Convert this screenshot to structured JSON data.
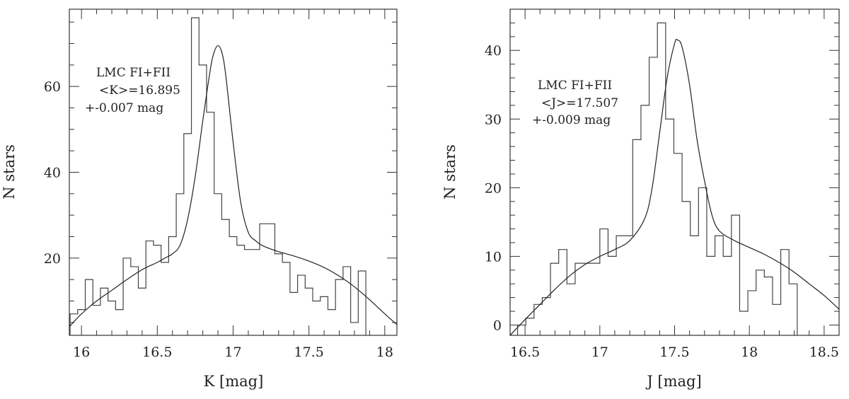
{
  "chart_data": [
    {
      "type": "line",
      "xlabel": "K [mag]",
      "ylabel": "N stars",
      "xlim": [
        15.92,
        18.08
      ],
      "ylim": [
        2,
        78
      ],
      "xticks": [
        16,
        16.5,
        17,
        17.5,
        18
      ],
      "xtick_labels": [
        "16",
        "16.5",
        "17",
        "17.5",
        "18"
      ],
      "yticks": [
        20,
        40,
        60
      ],
      "ytick_labels": [
        "20",
        "40",
        "60"
      ],
      "annotation": [
        "LMC FI+FII",
        "<K>=16.895",
        "+-0.007 mag"
      ],
      "series": [
        {
          "kind": "histogram-step",
          "bin_width": 0.05,
          "bin_edges_start": 15.925,
          "counts": [
            7,
            8,
            15,
            9,
            13,
            10,
            8,
            20,
            18,
            13,
            24,
            23,
            19,
            25,
            35,
            49,
            76,
            65,
            54,
            35,
            29,
            25,
            23,
            22,
            22,
            28,
            28,
            21,
            19,
            12,
            16,
            13,
            10,
            11,
            8,
            15,
            18,
            5,
            17
          ]
        },
        {
          "kind": "fit-curve",
          "x": [
            15.92,
            16.0,
            16.1,
            16.2,
            16.3,
            16.4,
            16.5,
            16.55,
            16.6,
            16.65,
            16.7,
            16.75,
            16.8,
            16.85,
            16.875,
            16.9,
            16.925,
            16.95,
            17.0,
            17.05,
            17.1,
            17.15,
            17.2,
            17.3,
            17.4,
            17.5,
            17.6,
            17.7,
            17.8,
            17.9,
            18.0,
            18.08
          ],
          "y": [
            4,
            7,
            10,
            12.5,
            15,
            17.3,
            19,
            20,
            21,
            23,
            29,
            39,
            52,
            64,
            68,
            69.5,
            68,
            63,
            47,
            33,
            26,
            24,
            22.8,
            21.5,
            20.5,
            19.3,
            17.8,
            15.8,
            13.3,
            10.3,
            7,
            4.5
          ]
        }
      ]
    },
    {
      "type": "line",
      "xlabel": "J [mag]",
      "ylabel": "N stars",
      "xlim": [
        16.4,
        18.6
      ],
      "ylim": [
        -1.5,
        46
      ],
      "xticks": [
        16.5,
        17,
        17.5,
        18,
        18.5
      ],
      "xtick_labels": [
        "16.5",
        "17",
        "17.5",
        "18",
        "18.5"
      ],
      "yticks": [
        0,
        10,
        20,
        30,
        40
      ],
      "ytick_labels": [
        "0",
        "10",
        "20",
        "30",
        "40"
      ],
      "annotation": [
        "LMC FI+FII",
        "<J>=17.507",
        "+-0.009 mag"
      ],
      "series": [
        {
          "kind": "histogram-step",
          "bin_width": 0.055,
          "bin_edges_start": 16.45,
          "counts": [
            0,
            1,
            3,
            4,
            9,
            11,
            6,
            9,
            9,
            9,
            14,
            10,
            13,
            13,
            27,
            32,
            39,
            44,
            30,
            25,
            18,
            13,
            20,
            10,
            13,
            10,
            16,
            2,
            5,
            8,
            7,
            3,
            11,
            6
          ]
        },
        {
          "kind": "fit-curve",
          "x": [
            16.4,
            16.5,
            16.6,
            16.7,
            16.8,
            16.9,
            17.0,
            17.1,
            17.2,
            17.3,
            17.35,
            17.4,
            17.45,
            17.5,
            17.52,
            17.55,
            17.6,
            17.65,
            17.7,
            17.75,
            17.8,
            17.9,
            18.0,
            18.1,
            18.2,
            18.3,
            18.4,
            18.5,
            18.6
          ],
          "y": [
            -1.5,
            0.8,
            3,
            5.2,
            7.2,
            8.8,
            10,
            11,
            12.3,
            15.5,
            20,
            28,
            36,
            41,
            41.5,
            40.5,
            35,
            27,
            21,
            16,
            13.7,
            12.3,
            11.3,
            10.3,
            9.1,
            7.7,
            6,
            4.3,
            2.3
          ]
        }
      ]
    }
  ]
}
